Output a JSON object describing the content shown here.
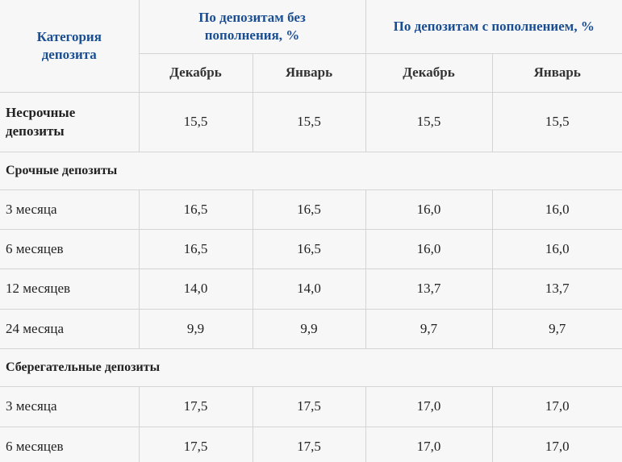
{
  "header": {
    "category": "Категория депозита",
    "group_no_topup": "По депозитам без пополнения, %",
    "group_topup": "По депозитам с пополнением, %",
    "months": [
      "Декабрь",
      "Январь",
      "Декабрь",
      "Январь"
    ]
  },
  "rows": [
    {
      "label": "Несрочные депозиты",
      "values": [
        "15,5",
        "15,5",
        "15,5",
        "15,5"
      ]
    },
    {
      "section": "Срочные депозиты"
    },
    {
      "label": "3 месяца",
      "values": [
        "16,5",
        "16,5",
        "16,0",
        "16,0"
      ]
    },
    {
      "label": "6 месяцев",
      "values": [
        "16,5",
        "16,5",
        "16,0",
        "16,0"
      ]
    },
    {
      "label": "12 месяцев",
      "values": [
        "14,0",
        "14,0",
        "13,7",
        "13,7"
      ]
    },
    {
      "label": "24 месяца",
      "values": [
        "9,9",
        "9,9",
        "9,7",
        "9,7"
      ]
    },
    {
      "section": "Сберегательные депозиты"
    },
    {
      "label": "3 месяца",
      "values": [
        "17,5",
        "17,5",
        "17,0",
        "17,0"
      ]
    },
    {
      "label": "6 месяцев",
      "values": [
        "17,5",
        "17,5",
        "17,0",
        "17,0"
      ]
    }
  ]
}
